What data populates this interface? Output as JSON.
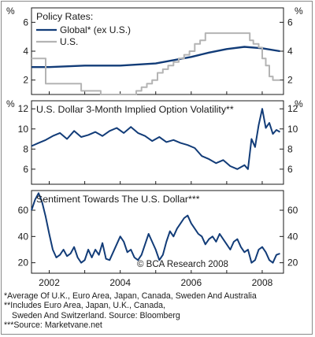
{
  "chart_data": [
    {
      "type": "line",
      "title": "Policy Rates:",
      "ylim": [
        1,
        7
      ],
      "yticks": [
        2,
        4,
        6
      ],
      "y_unit_label": "%",
      "x_range": [
        2001.5,
        2008.6
      ],
      "legend_position": "top-left",
      "series": [
        {
          "name": "Global* (ex U.S.)",
          "color": "#123c78",
          "x": [
            2001.5,
            2002.0,
            2003.0,
            2004.0,
            2005.0,
            2006.0,
            2006.5,
            2007.0,
            2007.5,
            2008.0,
            2008.5
          ],
          "y": [
            2.9,
            2.9,
            3.0,
            3.0,
            3.15,
            3.6,
            3.9,
            4.15,
            4.3,
            4.2,
            4.0
          ]
        },
        {
          "name": "U.S.",
          "color": "#b4b4b4",
          "step": true,
          "x": [
            2001.5,
            2001.9,
            2002.9,
            2003.45,
            2004.45,
            2004.6,
            2004.75,
            2004.9,
            2005.05,
            2005.2,
            2005.35,
            2005.5,
            2005.65,
            2005.8,
            2005.95,
            2006.1,
            2006.25,
            2006.4,
            2007.65,
            2007.75,
            2007.9,
            2008.0,
            2008.1,
            2008.2,
            2008.3,
            2008.5
          ],
          "y": [
            3.5,
            1.75,
            1.25,
            1.0,
            1.25,
            1.5,
            1.75,
            2.0,
            2.5,
            2.75,
            3.0,
            3.25,
            3.5,
            3.75,
            4.0,
            4.5,
            4.75,
            5.25,
            4.75,
            4.5,
            4.25,
            3.5,
            3.0,
            2.25,
            2.0,
            2.0
          ]
        }
      ]
    },
    {
      "type": "line",
      "title": "U.S. Dollar 3-Month Implied Option Volatility**",
      "ylim": [
        4.5,
        12.8
      ],
      "yticks": [
        6,
        8,
        10,
        12
      ],
      "y_unit_label": "%",
      "x_range": [
        2001.5,
        2008.6
      ],
      "series": [
        {
          "name": "",
          "color": "#123c78",
          "x": [
            2001.5,
            2001.7,
            2001.9,
            2002.1,
            2002.3,
            2002.5,
            2002.7,
            2002.9,
            2003.1,
            2003.3,
            2003.5,
            2003.7,
            2003.9,
            2004.1,
            2004.3,
            2004.5,
            2004.7,
            2004.9,
            2005.1,
            2005.3,
            2005.5,
            2005.7,
            2005.9,
            2006.1,
            2006.3,
            2006.5,
            2006.7,
            2006.9,
            2007.1,
            2007.3,
            2007.5,
            2007.6,
            2007.7,
            2007.8,
            2007.9,
            2008.0,
            2008.1,
            2008.2,
            2008.3,
            2008.4,
            2008.5
          ],
          "y": [
            8.3,
            8.6,
            8.9,
            9.3,
            9.6,
            9.0,
            9.8,
            9.2,
            9.4,
            9.7,
            9.3,
            9.8,
            10.1,
            9.6,
            10.2,
            9.6,
            9.3,
            8.8,
            9.2,
            8.7,
            8.9,
            8.6,
            8.4,
            8.1,
            7.3,
            7.0,
            6.6,
            6.9,
            6.3,
            6.0,
            6.4,
            6.0,
            9.0,
            8.2,
            10.4,
            12.0,
            10.1,
            10.6,
            9.5,
            9.9,
            9.7
          ]
        }
      ]
    },
    {
      "type": "line",
      "title": "Sentiment Towards The U.S. Dollar***",
      "ylim": [
        12,
        75
      ],
      "yticks": [
        20,
        40,
        60
      ],
      "x_range": [
        2001.5,
        2008.6
      ],
      "xticks": [
        2002,
        2004,
        2006,
        2008
      ],
      "xtick_labels": [
        "2002",
        "2004",
        "2006",
        "2008"
      ],
      "annotation": "© BCA Research 2008",
      "series": [
        {
          "name": "",
          "color": "#123c78",
          "x": [
            2001.5,
            2001.6,
            2001.7,
            2001.8,
            2001.9,
            2002.0,
            2002.1,
            2002.2,
            2002.3,
            2002.4,
            2002.5,
            2002.6,
            2002.7,
            2002.8,
            2002.9,
            2003.0,
            2003.1,
            2003.2,
            2003.3,
            2003.4,
            2003.5,
            2003.6,
            2003.7,
            2003.8,
            2003.9,
            2004.0,
            2004.1,
            2004.2,
            2004.3,
            2004.4,
            2004.5,
            2004.6,
            2004.7,
            2004.8,
            2004.9,
            2005.0,
            2005.1,
            2005.2,
            2005.3,
            2005.4,
            2005.5,
            2005.6,
            2005.7,
            2005.8,
            2005.9,
            2006.0,
            2006.1,
            2006.2,
            2006.3,
            2006.4,
            2006.5,
            2006.6,
            2006.7,
            2006.8,
            2006.9,
            2007.0,
            2007.1,
            2007.2,
            2007.3,
            2007.4,
            2007.5,
            2007.6,
            2007.7,
            2007.8,
            2007.9,
            2008.0,
            2008.1,
            2008.2,
            2008.3,
            2008.4,
            2008.5
          ],
          "y": [
            60,
            68,
            73,
            66,
            55,
            42,
            30,
            24,
            26,
            30,
            25,
            27,
            32,
            24,
            20,
            22,
            30,
            24,
            30,
            26,
            35,
            23,
            22,
            28,
            34,
            40,
            36,
            28,
            30,
            24,
            22,
            26,
            34,
            42,
            36,
            30,
            22,
            26,
            36,
            44,
            40,
            46,
            50,
            54,
            56,
            50,
            46,
            42,
            40,
            34,
            38,
            40,
            36,
            42,
            38,
            34,
            30,
            36,
            38,
            32,
            28,
            30,
            20,
            22,
            30,
            32,
            28,
            22,
            20,
            26,
            27
          ]
        }
      ]
    }
  ],
  "footnotes": [
    "*Average Of U.K., Euro Area, Japan, Canada, Sweden And Australia",
    "**Includes Euro Area, Japan, U.K., Canada,",
    "Sweden And Switzerland. Source: Bloomberg",
    "***Source: Marketvane.net"
  ]
}
